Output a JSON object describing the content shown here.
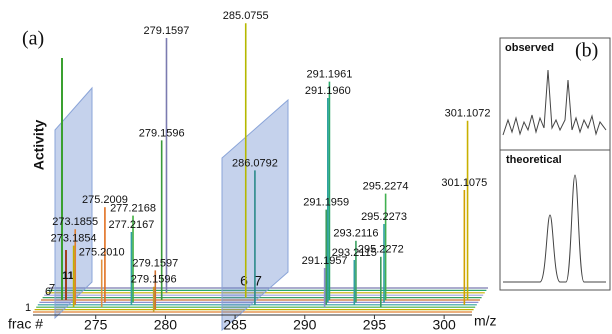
{
  "chart_data": {
    "type": "spectrum3d",
    "panel_label": "(a)",
    "y_label": "Activity",
    "x_label": "m/z",
    "depth_label": "frac #",
    "depth_ticks": [
      1,
      6,
      7,
      11
    ],
    "plane_ticks": [
      6,
      7
    ],
    "xlim": [
      270.5,
      302
    ],
    "xticks": [
      275,
      280,
      285,
      290,
      295,
      300
    ],
    "peaks": [
      {
        "mz": 285.0755,
        "intensity": 98,
        "frac": 7,
        "color": "#b5b800"
      },
      {
        "mz": 279.1597,
        "intensity": 91,
        "frac": 9,
        "color": "#7b7bb0"
      },
      {
        "mz": 279.1596,
        "intensity": 57,
        "frac": 6,
        "color": "#3a9a3a"
      },
      {
        "mz": 291.1961,
        "intensity": 78,
        "frac": 6,
        "color": "#2aa86a"
      },
      {
        "mz": 291.196,
        "label": "291.1960",
        "intensity": 73,
        "frac": 5,
        "color": "#29a0a0"
      },
      {
        "mz": 291.1959,
        "intensity": 34,
        "frac": 4,
        "color": "#3c9c5c"
      },
      {
        "mz": 291.1957,
        "intensity": 14,
        "frac": 3,
        "color": "#8f8fd0"
      },
      {
        "mz": 286.0792,
        "intensity": 48,
        "frac": 4,
        "color": "#2b8a8a"
      },
      {
        "mz": 301.1072,
        "intensity": 64,
        "frac": 6,
        "color": "#c8b000"
      },
      {
        "mz": 301.1075,
        "intensity": 41,
        "frac": 4,
        "color": "#d0a000"
      },
      {
        "mz": 273.1855,
        "intensity": 27,
        "frac": 4,
        "color": "#e08030"
      },
      {
        "mz": 273.1854,
        "intensity": 22,
        "frac": 3,
        "color": "#c0b000"
      },
      {
        "mz": 275.2009,
        "intensity": 34,
        "frac": 5,
        "color": "#e07020"
      },
      {
        "mz": 275.201,
        "label": "275.2010",
        "intensity": 17,
        "frac": 3,
        "color": "#e09040"
      },
      {
        "mz": 277.2168,
        "intensity": 31,
        "frac": 5,
        "color": "#40b040"
      },
      {
        "mz": 277.2167,
        "intensity": 26,
        "frac": 4,
        "color": "#30a0a0"
      },
      {
        "mz": 279.1597,
        "intensity": 14,
        "frac": 2,
        "color": "#d07030"
      },
      {
        "mz": 279.1596,
        "intensity": 9,
        "frac": 1,
        "color": "#c0a030"
      },
      {
        "mz": 293.2116,
        "intensity": 22,
        "frac": 5,
        "color": "#3aa060"
      },
      {
        "mz": 293.2115,
        "intensity": 16,
        "frac": 4,
        "color": "#30a0a0"
      },
      {
        "mz": 295.2274,
        "intensity": 38,
        "frac": 6,
        "color": "#40b050"
      },
      {
        "mz": 295.2273,
        "intensity": 28,
        "frac": 5,
        "color": "#30a0a0"
      },
      {
        "mz": 295.2272,
        "intensity": 18,
        "frac": 3,
        "color": "#3c9c5c"
      }
    ]
  },
  "inset": {
    "panel_label": "(b)",
    "top_label": "observed",
    "bottom_label": "theoretical"
  }
}
